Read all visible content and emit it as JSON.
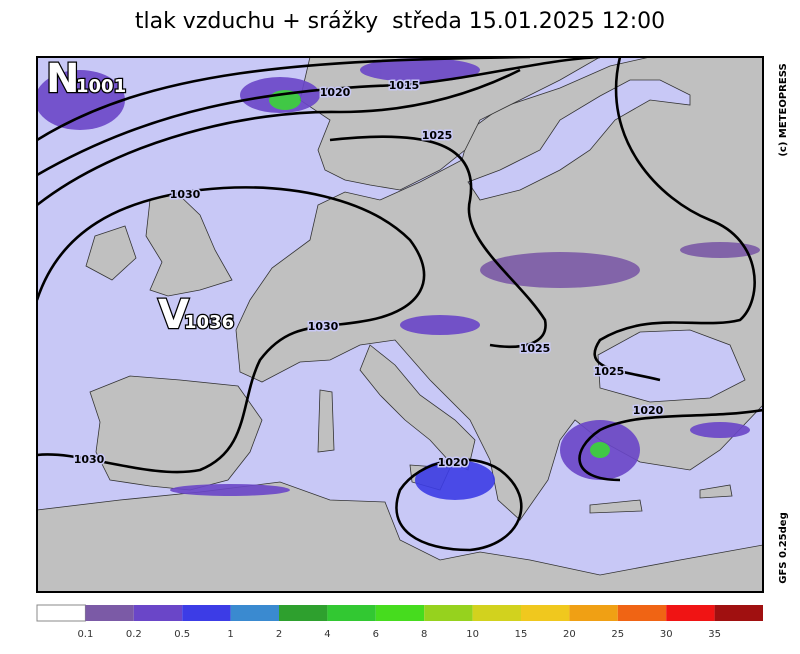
{
  "title": "tlak vzduchu + srážky  středa 15.01.2025 12:00",
  "credit": "(c) METEOPRESS",
  "model": "GFS 0.25deg",
  "pressure_centres": [
    {
      "letter": "N",
      "value": "1001"
    },
    {
      "letter": "V",
      "value": "1036"
    }
  ],
  "isobar_labels": [
    "1020",
    "1015",
    "1025",
    "1030",
    "1030",
    "1025",
    "1025",
    "1020",
    "1030",
    "1020"
  ],
  "colorbar": {
    "colors": [
      "#ffffff",
      "#7b5aa6",
      "#6a46c8",
      "#3c3ce6",
      "#3a8ad0",
      "#2ea02e",
      "#32c832",
      "#46dc1e",
      "#96d21e",
      "#d2d21e",
      "#f0c81e",
      "#f0a014",
      "#f06414",
      "#f01414",
      "#a01010"
    ],
    "labels": [
      "0.1",
      "0.2",
      "0.5",
      "1",
      "2",
      "4",
      "6",
      "8",
      "10",
      "15",
      "20",
      "25",
      "30",
      "35"
    ]
  }
}
